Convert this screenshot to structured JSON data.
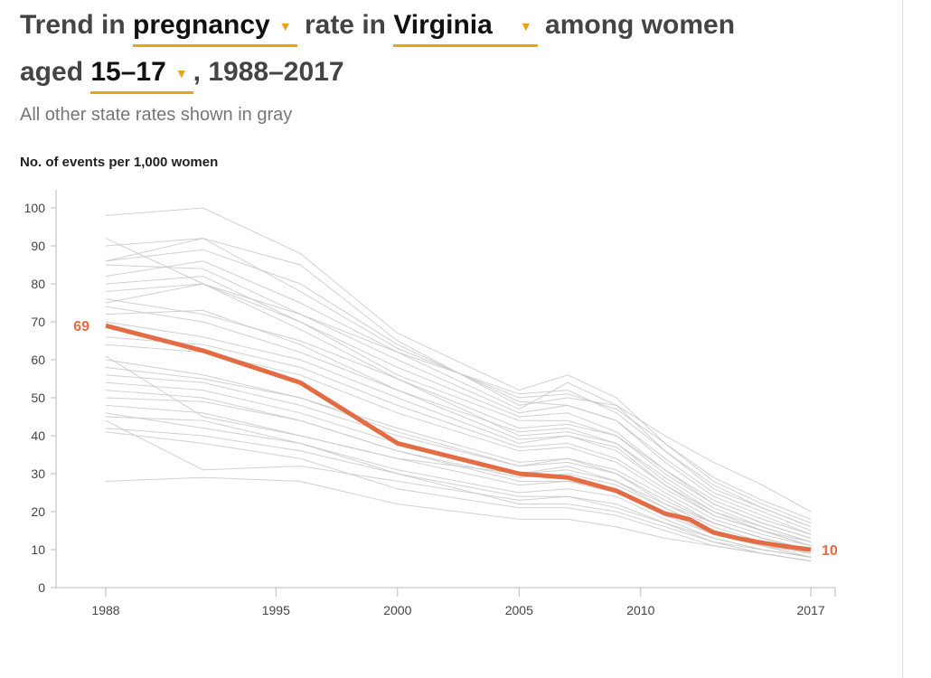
{
  "title": {
    "p1": "Trend in",
    "measure": "pregnancy",
    "p2": "rate in",
    "state": "Virginia",
    "p3": "among women",
    "p4": "aged",
    "age": "15–17",
    "p5": ", 1988–2017"
  },
  "subtitle": "All other state rates shown in gray",
  "colors": {
    "highlight": "#e36c45",
    "gray": "#c8c8c8",
    "accent": "#e8a317"
  },
  "chart_data": {
    "type": "line",
    "ylabel": "No. of events per 1,000 women",
    "ylim": [
      0,
      100
    ],
    "xlim": [
      1986,
      2018
    ],
    "yticks": [
      0,
      10,
      20,
      30,
      40,
      50,
      60,
      70,
      80,
      90,
      100
    ],
    "xticks": [
      1988,
      1995,
      2000,
      2005,
      2010,
      2017
    ],
    "highlight": {
      "name": "Virginia",
      "x": [
        1988,
        1992,
        1996,
        2000,
        2005,
        2007,
        2009,
        2011,
        2012,
        2013,
        2014,
        2015,
        2016,
        2017
      ],
      "values": [
        69,
        62.4,
        54,
        38,
        30,
        29,
        25.5,
        19.5,
        18,
        14.5,
        13,
        11.8,
        10.8,
        10
      ],
      "start_label": "69",
      "end_label": "10"
    },
    "other_x": [
      1988,
      1992,
      1996,
      2000,
      2005,
      2007,
      2009,
      2011,
      2013,
      2015,
      2017
    ],
    "others": [
      [
        98,
        100,
        88,
        67,
        52,
        56,
        50,
        38,
        28,
        22,
        17
      ],
      [
        92,
        80,
        72,
        62,
        51,
        52,
        46,
        36,
        27,
        21,
        16
      ],
      [
        86,
        92,
        78,
        63,
        50,
        51,
        47,
        38,
        29,
        23,
        18
      ],
      [
        86,
        89,
        80,
        64,
        49,
        48,
        44,
        34,
        25,
        20,
        15
      ],
      [
        85,
        84,
        72,
        60,
        46,
        48,
        44,
        33,
        24,
        19,
        14
      ],
      [
        80,
        82,
        70,
        58,
        45,
        46,
        41,
        31,
        23,
        18,
        14
      ],
      [
        78,
        80,
        70,
        56,
        44,
        44,
        40,
        30,
        22,
        17,
        13
      ],
      [
        76,
        72,
        65,
        55,
        42,
        43,
        40,
        31,
        22,
        17,
        13
      ],
      [
        75,
        80,
        68,
        55,
        40,
        41,
        38,
        28,
        20,
        16,
        12
      ],
      [
        74,
        70,
        62,
        52,
        41,
        42,
        38,
        29,
        21,
        16,
        12
      ],
      [
        72,
        73,
        64,
        52,
        39,
        40,
        37,
        27,
        20,
        15,
        12
      ],
      [
        70,
        66,
        60,
        50,
        38,
        40,
        36,
        27,
        19,
        15,
        11
      ],
      [
        66,
        64,
        58,
        48,
        37,
        38,
        34,
        26,
        19,
        15,
        11
      ],
      [
        64,
        62,
        56,
        46,
        36,
        37,
        33,
        25,
        18,
        14,
        11
      ],
      [
        61,
        45,
        40,
        34,
        30,
        32,
        28,
        22,
        17,
        13,
        10
      ],
      [
        60,
        56,
        50,
        42,
        33,
        34,
        31,
        24,
        17,
        13,
        10
      ],
      [
        58,
        55,
        50,
        41,
        32,
        34,
        30,
        23,
        17,
        13,
        10
      ],
      [
        56,
        54,
        48,
        40,
        32,
        33,
        30,
        22,
        16,
        12,
        9
      ],
      [
        54,
        52,
        46,
        38,
        30,
        31,
        28,
        21,
        15,
        12,
        9
      ],
      [
        52,
        50,
        44,
        36,
        29,
        30,
        27,
        21,
        15,
        11,
        9
      ],
      [
        50,
        49,
        44,
        36,
        28,
        28,
        26,
        20,
        14,
        11,
        8
      ],
      [
        48,
        46,
        40,
        34,
        27,
        28,
        25,
        19,
        14,
        11,
        8
      ],
      [
        46,
        42,
        38,
        31,
        25,
        26,
        24,
        18,
        13,
        10,
        8
      ],
      [
        45,
        44,
        38,
        30,
        24,
        24,
        22,
        17,
        12,
        10,
        8
      ],
      [
        44,
        31,
        32,
        28,
        23,
        24,
        21,
        17,
        13,
        10,
        8
      ],
      [
        42,
        40,
        36,
        30,
        22,
        22,
        20,
        16,
        12,
        9,
        7
      ],
      [
        41,
        38,
        34,
        26,
        21,
        21,
        19,
        15,
        11,
        9,
        7
      ],
      [
        28,
        29,
        28,
        22,
        18,
        18,
        16,
        13,
        11,
        9,
        7
      ],
      [
        90,
        92,
        85,
        65,
        48,
        50,
        48,
        40,
        33,
        27,
        20
      ],
      [
        82,
        86,
        75,
        62,
        47,
        54,
        48,
        36,
        26,
        21,
        16
      ]
    ]
  }
}
